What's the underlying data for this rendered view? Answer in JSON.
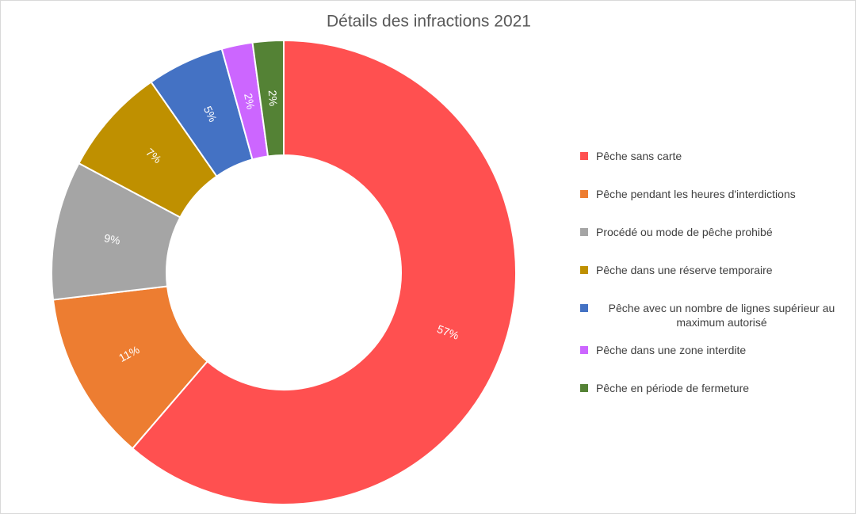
{
  "chart_data": {
    "type": "donut",
    "title": "Détails des infractions 2021",
    "categories": [
      "Pêche sans carte",
      "Pêche pendant les heures d'interdictions",
      "Procédé ou mode de pêche prohibé",
      "Pêche dans une réserve temporaire",
      "Pêche avec un nombre de lignes supérieur au maximum autorisé",
      "Pêche dans une zone interdite",
      "Pêche en période de fermeture"
    ],
    "values": [
      57,
      11,
      9,
      7,
      5,
      2,
      2
    ],
    "value_labels": [
      "57%",
      "11%",
      "9%",
      "7%",
      "5%",
      "2%",
      "2%"
    ],
    "colors": [
      "#ff5050",
      "#ed7d31",
      "#a5a5a5",
      "#bf9000",
      "#4472c4",
      "#cc66ff",
      "#548235"
    ],
    "legend": "right"
  }
}
